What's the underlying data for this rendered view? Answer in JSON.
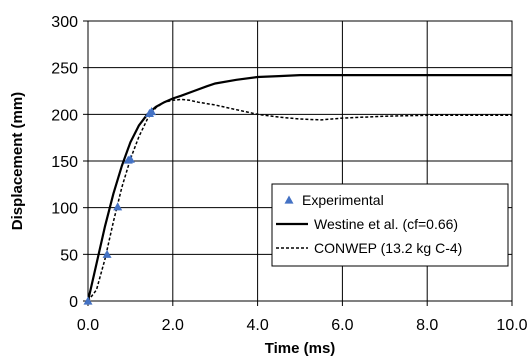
{
  "chart_data": {
    "type": "line",
    "title": "",
    "xlabel": "Time (ms)",
    "ylabel": "Displacement (mm)",
    "xlim": [
      0,
      10
    ],
    "ylim": [
      0,
      300
    ],
    "grid": true,
    "legend_position": "center-right",
    "x_ticks": [
      "0.0",
      "2.0",
      "4.0",
      "6.0",
      "8.0",
      "10.0"
    ],
    "y_ticks": [
      "0",
      "50",
      "100",
      "150",
      "200",
      "250",
      "300"
    ],
    "series": [
      {
        "name": "Experimental",
        "kind": "scatter",
        "marker": "triangle",
        "color": "#4472c4",
        "x": [
          0.0,
          0.45,
          0.7,
          0.95,
          1.0,
          1.45,
          1.5
        ],
        "y": [
          0,
          50,
          101,
          151,
          152,
          201,
          203
        ]
      },
      {
        "name": "Westine et al.  (cf=0.66)",
        "kind": "line",
        "dash": "solid",
        "color": "#000000",
        "x": [
          0.0,
          0.2,
          0.4,
          0.6,
          0.8,
          1.0,
          1.2,
          1.4,
          1.6,
          1.8,
          2.0,
          2.2,
          2.5,
          2.8,
          3.0,
          3.5,
          4.0,
          4.5,
          5.0,
          6.0,
          7.0,
          8.0,
          9.0,
          10.0
        ],
        "y": [
          0,
          40,
          80,
          115,
          145,
          170,
          188,
          200,
          208,
          213,
          217,
          220,
          225,
          230,
          233,
          237,
          240,
          241,
          242,
          242,
          242,
          242,
          242,
          242
        ]
      },
      {
        "name": "CONWEP (13.2 kg C-4)",
        "kind": "line",
        "dash": "dashed",
        "color": "#000000",
        "x": [
          0.0,
          0.2,
          0.4,
          0.6,
          0.8,
          1.0,
          1.2,
          1.4,
          1.6,
          1.8,
          2.0,
          2.2,
          2.4,
          2.6,
          3.0,
          3.5,
          4.0,
          4.5,
          5.0,
          5.5,
          6.0,
          7.0,
          8.0,
          9.0,
          10.0
        ],
        "y": [
          0,
          12,
          45,
          85,
          122,
          152,
          176,
          195,
          207,
          213,
          215,
          216,
          215,
          213,
          210,
          205,
          200,
          197,
          195,
          194,
          196,
          198,
          199,
          199,
          199
        ]
      }
    ]
  }
}
